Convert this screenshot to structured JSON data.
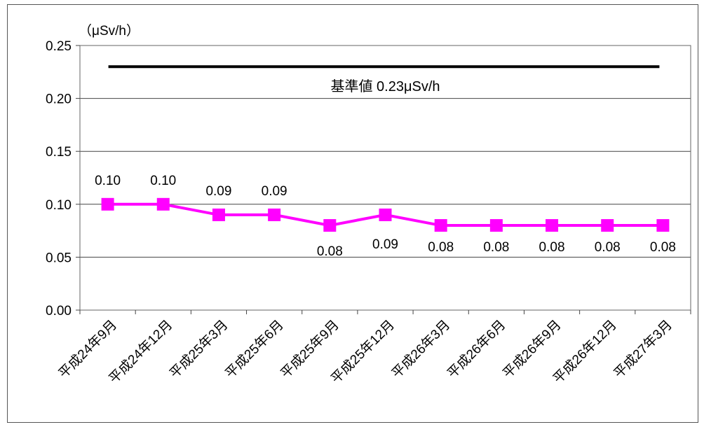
{
  "chart_data": {
    "type": "line",
    "unit_label": "（μSv/h）",
    "categories": [
      "平成24年9月",
      "平成24年12月",
      "平成25年3月",
      "平成25年6月",
      "平成25年9月",
      "平成25年12月",
      "平成26年3月",
      "平成26年6月",
      "平成26年9月",
      "平成26年12月",
      "平成27年3月"
    ],
    "series": [
      {
        "values": [
          0.1,
          0.1,
          0.09,
          0.09,
          0.08,
          0.09,
          0.08,
          0.08,
          0.08,
          0.08,
          0.08
        ],
        "color": "#ff00ff"
      }
    ],
    "data_labels": [
      "0.10",
      "0.10",
      "0.09",
      "0.09",
      "0.08",
      "0.09",
      "0.08",
      "0.08",
      "0.08",
      "0.08",
      "0.08"
    ],
    "reference_line": {
      "value": 0.23,
      "label": "基準値 0.23μSv/h",
      "color": "#000000"
    },
    "ylim": [
      0,
      0.25
    ],
    "y_ticks": [
      "0.00",
      "0.05",
      "0.10",
      "0.15",
      "0.20",
      "0.25"
    ],
    "grid": true,
    "legend": false
  }
}
